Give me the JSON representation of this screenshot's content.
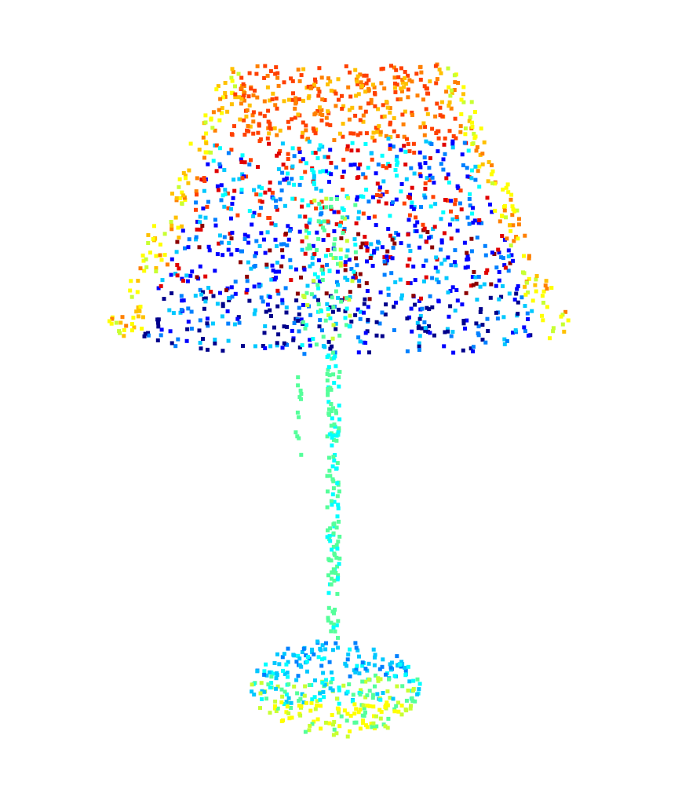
{
  "scene": {
    "background": "#ffffff",
    "subject": "lamp",
    "render_style": "colored point cloud",
    "colormap": [
      "#00008b",
      "#0000ff",
      "#0080ff",
      "#00c8ff",
      "#00ffff",
      "#55ff9a",
      "#c8ff32",
      "#ffff00",
      "#ffc000",
      "#ff8000",
      "#ff4000",
      "#e00000",
      "#8b0000"
    ]
  }
}
